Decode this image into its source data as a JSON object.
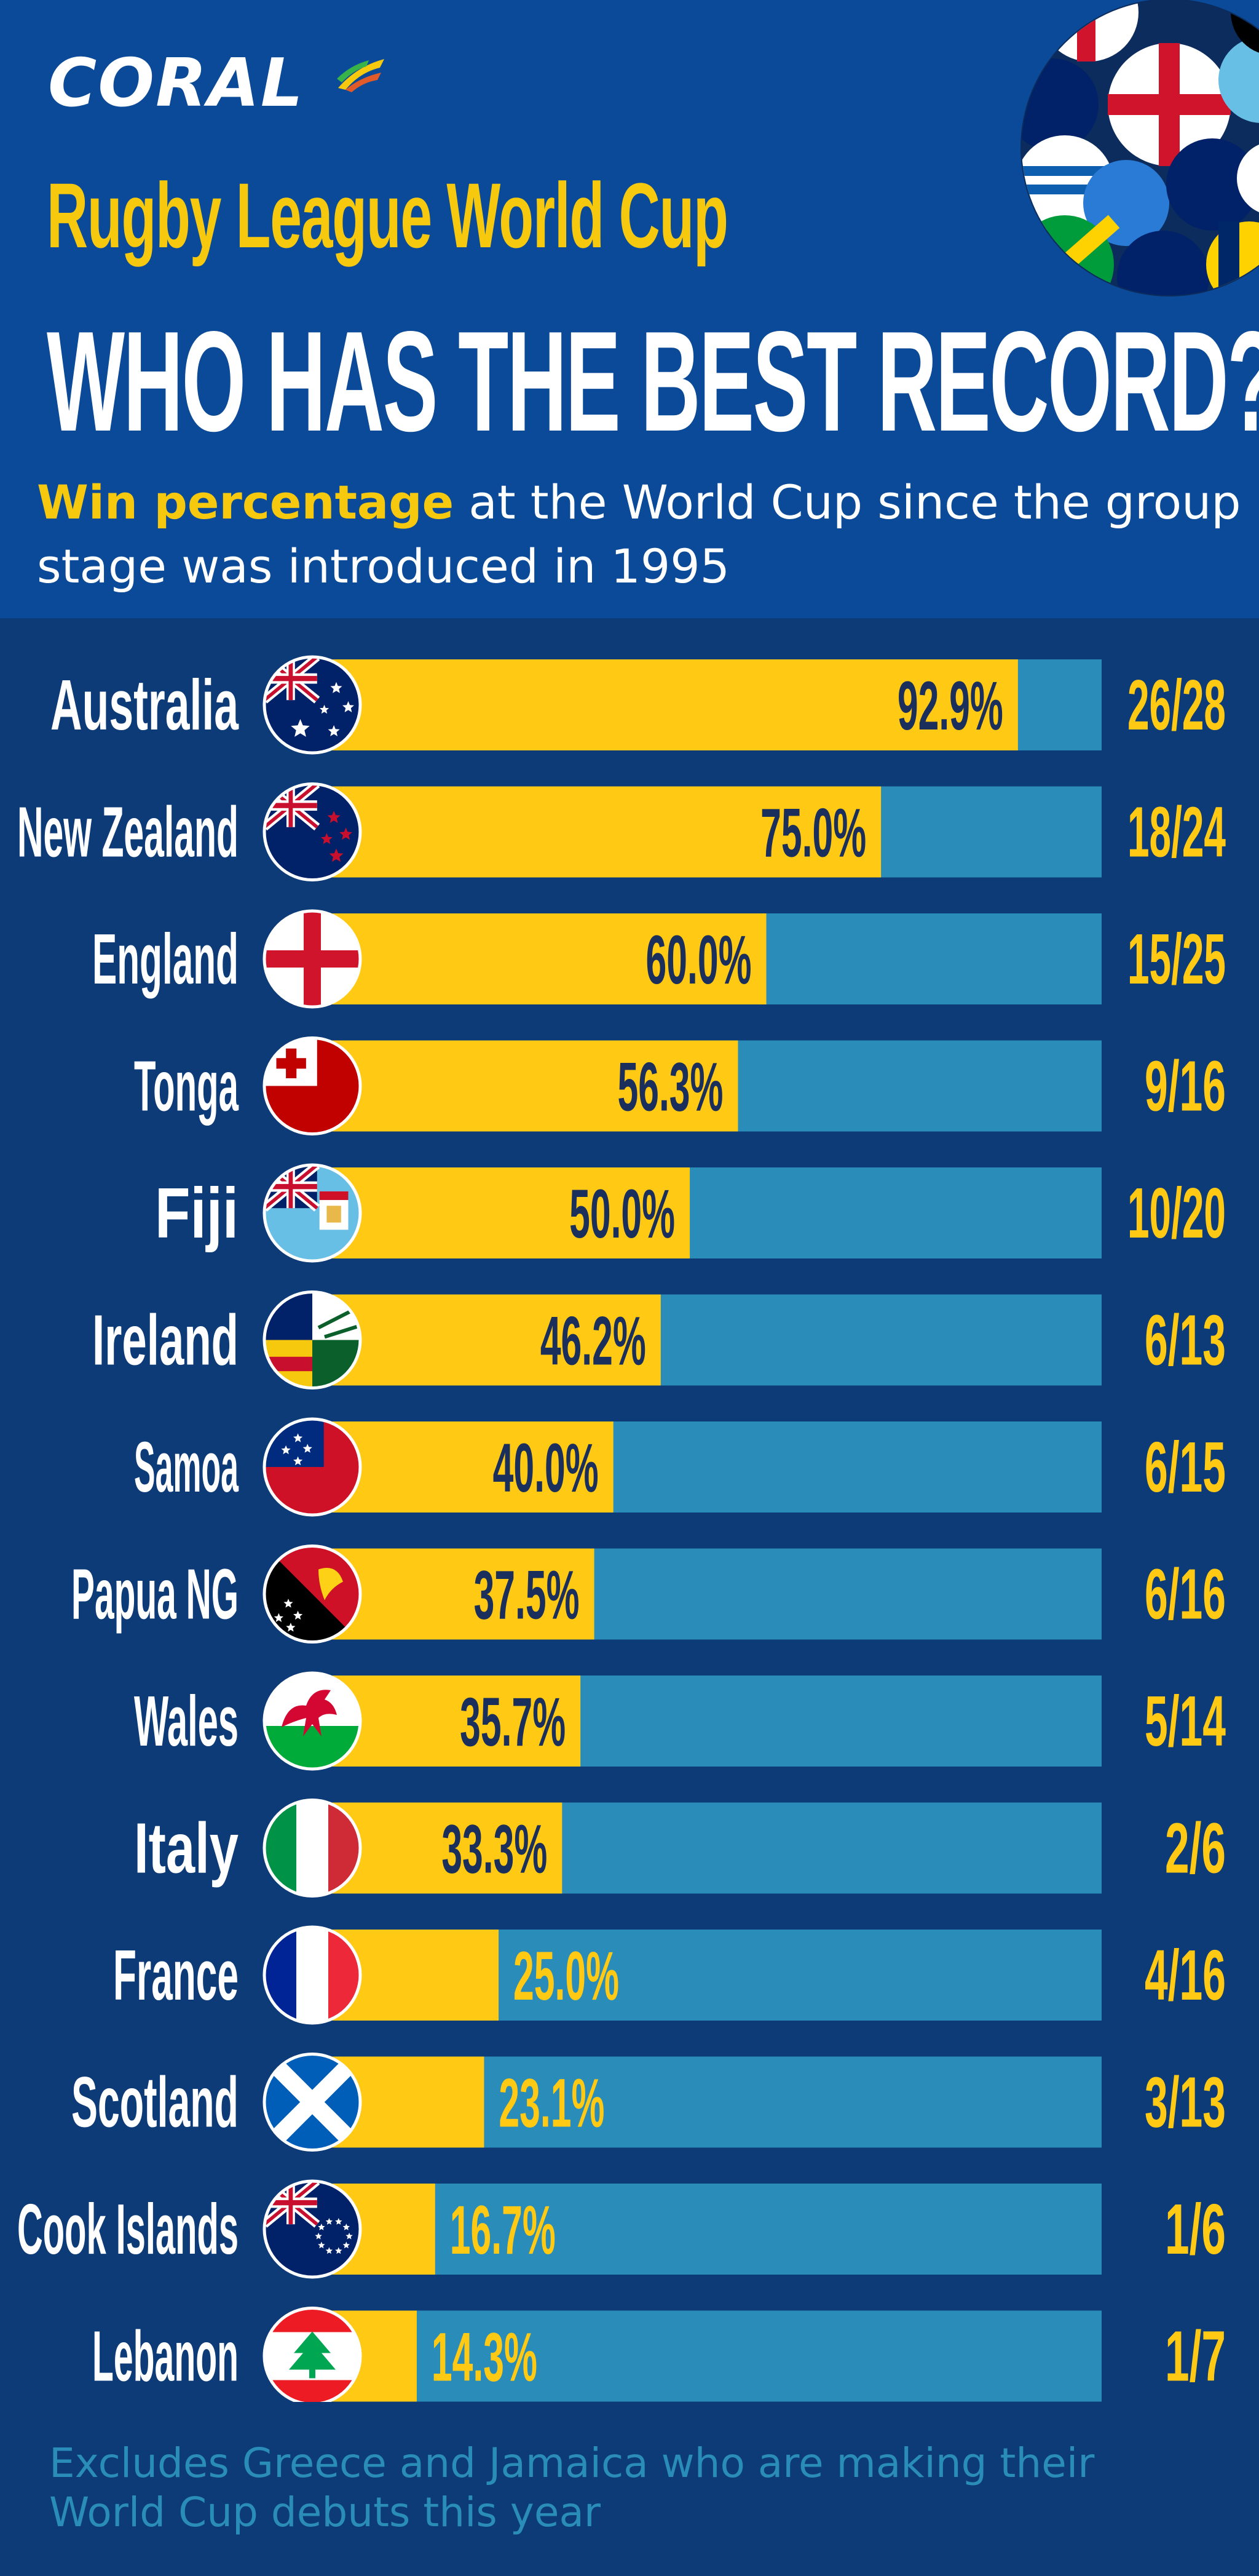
{
  "brand": {
    "name": "CORAL"
  },
  "header": {
    "subtitle": "Rugby League World Cup",
    "title": "WHO HAS THE BEST RECORD?",
    "lead_highlight": "Win percentage",
    "lead_rest": " at the World Cup since the group stage was introduced in 1995"
  },
  "colors": {
    "background": "#0d3b78",
    "header": "#0b4a98",
    "bar_fill": "#ffc914",
    "bar_track": "#2a8cb8",
    "label_dark": "#1b2f5c"
  },
  "chart_data": {
    "type": "bar",
    "orientation": "horizontal",
    "title": "WHO HAS THE BEST RECORD?",
    "xlim": [
      0,
      100
    ],
    "categories": [
      "Australia",
      "New Zealand",
      "England",
      "Tonga",
      "Fiji",
      "Ireland",
      "Samoa",
      "Papua NG",
      "Wales",
      "Italy",
      "France",
      "Scotland",
      "Cook Islands",
      "Lebanon"
    ],
    "values": [
      92.9,
      75.0,
      60.0,
      56.3,
      50.0,
      46.2,
      40.0,
      37.5,
      35.7,
      33.3,
      25.0,
      23.1,
      16.7,
      14.3
    ],
    "value_labels": [
      "92.9%",
      "75.0%",
      "60.0%",
      "56.3%",
      "50.0%",
      "46.2%",
      "40.0%",
      "37.5%",
      "35.7%",
      "33.3%",
      "25.0%",
      "23.1%",
      "16.7%",
      "14.3%"
    ],
    "records": [
      "26/28",
      "18/24",
      "15/25",
      "9/16",
      "10/20",
      "6/13",
      "6/15",
      "6/16",
      "5/14",
      "2/6",
      "4/16",
      "3/13",
      "1/6",
      "1/7"
    ],
    "flags": [
      "australia-flag",
      "new-zealand-flag",
      "england-flag",
      "tonga-flag",
      "fiji-flag",
      "ireland-flag",
      "samoa-flag",
      "papua-new-guinea-flag",
      "wales-flag",
      "italy-flag",
      "france-flag",
      "scotland-flag",
      "cook-islands-flag",
      "lebanon-flag"
    ]
  },
  "footnote": "Excludes Greece and Jamaica who are making their World Cup debuts this year"
}
